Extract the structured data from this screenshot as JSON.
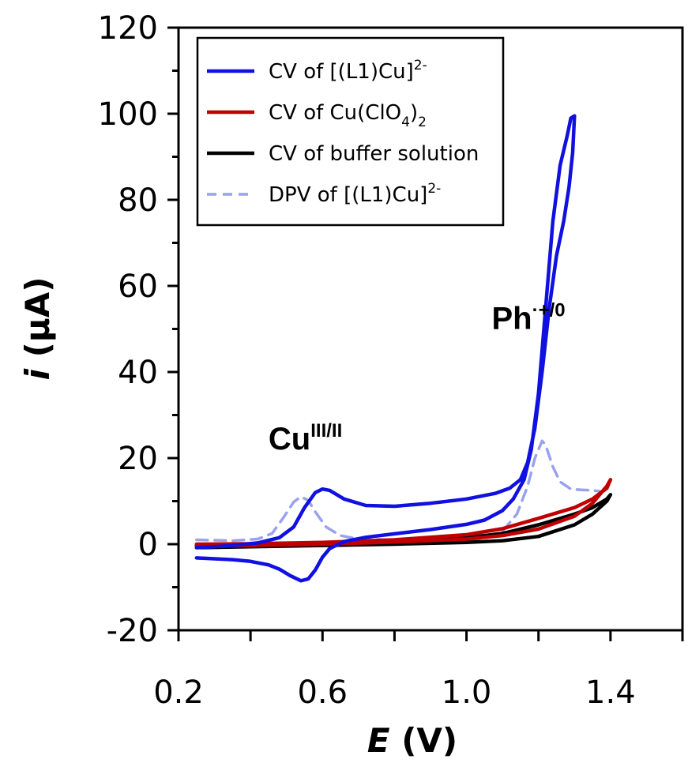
{
  "chart_data": {
    "type": "line",
    "xlabel": {
      "main": "E",
      "unit": " (V)"
    },
    "ylabel": {
      "main": "i",
      "unit": " (µA)"
    },
    "xlim": [
      0.2,
      1.6
    ],
    "ylim": [
      -20,
      120
    ],
    "x_ticks": [
      0.2,
      0.6,
      1.0,
      1.4
    ],
    "x_tick_labels": [
      "0.2",
      "0.6",
      "1.0",
      "1.4"
    ],
    "x_minor_ticks": [
      0.4,
      0.8,
      1.2,
      1.6
    ],
    "y_ticks": [
      -20,
      0,
      20,
      40,
      60,
      80,
      100,
      120
    ],
    "y_tick_labels": [
      "-20",
      "0",
      "20",
      "40",
      "60",
      "80",
      "100",
      "120"
    ],
    "legend": {
      "placement": "top-left"
    },
    "series": [
      {
        "name_parts": [
          "CV of [(L1)Cu]",
          "2-",
          ""
        ],
        "color": "#1010e0",
        "dash": "solid",
        "points": [
          [
            0.25,
            -3.2
          ],
          [
            0.3,
            -3.4
          ],
          [
            0.35,
            -3.6
          ],
          [
            0.4,
            -4
          ],
          [
            0.45,
            -4.8
          ],
          [
            0.48,
            -5.8
          ],
          [
            0.51,
            -7.3
          ],
          [
            0.54,
            -8.5
          ],
          [
            0.56,
            -8.1
          ],
          [
            0.58,
            -6
          ],
          [
            0.6,
            -3
          ],
          [
            0.62,
            -1
          ],
          [
            0.66,
            0.6
          ],
          [
            0.72,
            1.6
          ],
          [
            0.8,
            2.4
          ],
          [
            0.9,
            3.4
          ],
          [
            1.0,
            4.6
          ],
          [
            1.05,
            5.6
          ],
          [
            1.1,
            7.8
          ],
          [
            1.13,
            10.5
          ],
          [
            1.16,
            15
          ],
          [
            1.18,
            22
          ],
          [
            1.2,
            35
          ],
          [
            1.22,
            55
          ],
          [
            1.24,
            75
          ],
          [
            1.26,
            88
          ],
          [
            1.28,
            95
          ],
          [
            1.29,
            99
          ],
          [
            1.3,
            99.5
          ],
          [
            1.295,
            91
          ],
          [
            1.285,
            83
          ],
          [
            1.27,
            75
          ],
          [
            1.25,
            67
          ],
          [
            1.23,
            55
          ],
          [
            1.21,
            40
          ],
          [
            1.19,
            27
          ],
          [
            1.17,
            19
          ],
          [
            1.15,
            15
          ],
          [
            1.12,
            13
          ],
          [
            1.08,
            11.8
          ],
          [
            1.0,
            10.5
          ],
          [
            0.9,
            9.5
          ],
          [
            0.8,
            8.8
          ],
          [
            0.72,
            9
          ],
          [
            0.66,
            10.5
          ],
          [
            0.62,
            12.5
          ],
          [
            0.6,
            12.8
          ],
          [
            0.58,
            12
          ],
          [
            0.55,
            8.5
          ],
          [
            0.52,
            4
          ],
          [
            0.48,
            1.5
          ],
          [
            0.42,
            0.3
          ],
          [
            0.35,
            -0.3
          ],
          [
            0.3,
            -0.6
          ],
          [
            0.25,
            -0.8
          ]
        ]
      },
      {
        "name_parts": [
          "CV of Cu(ClO",
          "4",
          ")",
          "2"
        ],
        "color": "#c00000",
        "dash": "solid",
        "points": [
          [
            0.25,
            -0.6
          ],
          [
            0.4,
            -0.3
          ],
          [
            0.6,
            0
          ],
          [
            0.8,
            0.5
          ],
          [
            1.0,
            1.2
          ],
          [
            1.1,
            2
          ],
          [
            1.2,
            3.5
          ],
          [
            1.3,
            6.5
          ],
          [
            1.35,
            9.5
          ],
          [
            1.39,
            13.5
          ],
          [
            1.4,
            15
          ],
          [
            1.39,
            13
          ],
          [
            1.35,
            10.5
          ],
          [
            1.3,
            8.5
          ],
          [
            1.2,
            6
          ],
          [
            1.1,
            3.6
          ],
          [
            1.0,
            2.2
          ],
          [
            0.8,
            1
          ],
          [
            0.6,
            0.4
          ],
          [
            0.4,
            0.1
          ],
          [
            0.25,
            0
          ]
        ]
      },
      {
        "name_parts": [
          "CV of buffer solution"
        ],
        "color": "#000000",
        "dash": "solid",
        "points": [
          [
            0.25,
            -0.8
          ],
          [
            0.4,
            -0.6
          ],
          [
            0.6,
            -0.3
          ],
          [
            0.8,
            0
          ],
          [
            1.0,
            0.4
          ],
          [
            1.1,
            0.8
          ],
          [
            1.2,
            1.8
          ],
          [
            1.3,
            4.5
          ],
          [
            1.35,
            7
          ],
          [
            1.39,
            10
          ],
          [
            1.4,
            11.5
          ],
          [
            1.39,
            10.5
          ],
          [
            1.35,
            8.5
          ],
          [
            1.3,
            7
          ],
          [
            1.2,
            4.5
          ],
          [
            1.1,
            2.5
          ],
          [
            1.0,
            1.5
          ],
          [
            0.8,
            0.6
          ],
          [
            0.6,
            0.2
          ],
          [
            0.4,
            -0.1
          ],
          [
            0.25,
            -0.3
          ]
        ]
      },
      {
        "name_parts": [
          "DPV of [(L1)Cu]",
          "2-",
          ""
        ],
        "color": "#9aa2ee",
        "dash": "dashed",
        "points": [
          [
            0.25,
            1
          ],
          [
            0.35,
            0.8
          ],
          [
            0.42,
            1.2
          ],
          [
            0.46,
            2.5
          ],
          [
            0.49,
            6
          ],
          [
            0.52,
            9.8
          ],
          [
            0.54,
            11
          ],
          [
            0.56,
            10.2
          ],
          [
            0.58,
            7.5
          ],
          [
            0.61,
            4
          ],
          [
            0.65,
            2
          ],
          [
            0.7,
            1.2
          ],
          [
            0.8,
            1
          ],
          [
            0.9,
            0.9
          ],
          [
            1.0,
            1
          ],
          [
            1.05,
            1.3
          ],
          [
            1.1,
            3
          ],
          [
            1.14,
            7
          ],
          [
            1.17,
            13.5
          ],
          [
            1.19,
            20
          ],
          [
            1.21,
            24
          ],
          [
            1.22,
            23
          ],
          [
            1.24,
            18
          ],
          [
            1.26,
            14.5
          ],
          [
            1.29,
            12.8
          ],
          [
            1.32,
            12.6
          ],
          [
            1.35,
            12.5
          ],
          [
            1.37,
            12.3
          ]
        ]
      }
    ],
    "annotations": [
      {
        "base": "Cu",
        "sup": "III/II",
        "x": 0.45,
        "y": 22
      },
      {
        "base": "Ph",
        "sup": "·+/0",
        "x": 1.07,
        "y": 50
      }
    ]
  }
}
